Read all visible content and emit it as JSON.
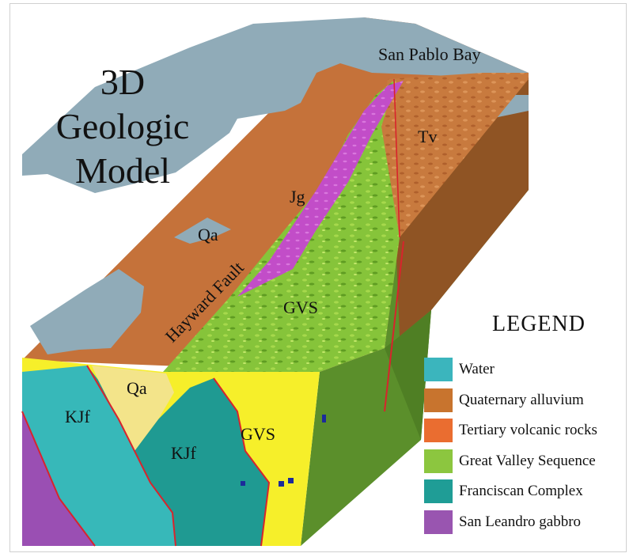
{
  "title": {
    "line1": "3D Geologic",
    "line2": "Model"
  },
  "labels": {
    "san_pablo_bay": "San Pablo Bay",
    "tv": "Tv",
    "jg": "Jg",
    "qa_top": "Qa",
    "hayward_fault": "Hayward Fault",
    "gvs_top": "GVS",
    "qa_front": "Qa",
    "kjf_left": "KJf",
    "kjf_center": "KJf",
    "gvs_front": "GVS"
  },
  "legend": {
    "title": "LEGEND",
    "items": [
      {
        "label": "Water",
        "color": "#3bb5bd"
      },
      {
        "label": "Quaternary alluvium",
        "color": "#c8742e"
      },
      {
        "label": "Tertiary volcanic rocks",
        "color": "#ea6d30"
      },
      {
        "label": "Great Valley Sequence",
        "color": "#8cc63f"
      },
      {
        "label": "Franciscan Complex",
        "color": "#1f9d96"
      },
      {
        "label": "San Leandro gabbro",
        "color": "#9955b0"
      }
    ]
  },
  "colors": {
    "water_surface": "#90abb8",
    "alluvium": "#c5723a",
    "volcanic": "#c87a3e",
    "gvs": "#86c43a",
    "gabbro_top": "#c24dc8",
    "fault_line": "#d8242c",
    "front_yellow": "#f6ef2a",
    "front_pale_yellow": "#f3e48a",
    "franciscan_light": "#37b8b9",
    "franciscan_dark": "#1f9a92",
    "gabbro_front": "#9a4fb3",
    "side_green": "#5b8f2b",
    "side_brown": "#8f5424"
  }
}
